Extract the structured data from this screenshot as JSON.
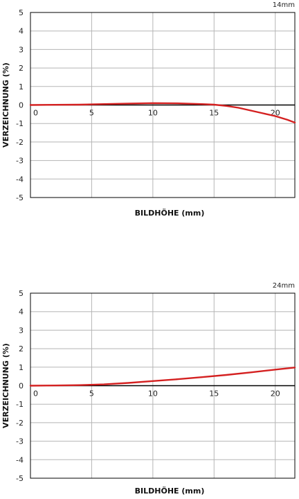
{
  "chart_data": [
    {
      "type": "line",
      "title": "14mm",
      "xlabel": "BILDHÖHE (mm)",
      "ylabel": "VERZEICHNUNG (%)",
      "xlim": [
        0,
        21.6
      ],
      "ylim": [
        -5,
        5
      ],
      "xticks": [
        0,
        5,
        10,
        15,
        20
      ],
      "yticks": [
        5,
        4,
        3,
        2,
        1,
        0,
        -1,
        -2,
        -3,
        -4,
        -5
      ],
      "grid": true,
      "series": [
        {
          "color": "#d42020",
          "x": [
            0,
            2,
            4,
            6,
            8,
            10,
            12,
            14,
            15,
            16,
            17,
            18,
            19,
            20,
            21,
            21.6
          ],
          "y": [
            0,
            0.01,
            0.02,
            0.05,
            0.08,
            0.1,
            0.09,
            0.05,
            0.02,
            -0.05,
            -0.15,
            -0.3,
            -0.45,
            -0.6,
            -0.8,
            -0.95
          ]
        }
      ]
    },
    {
      "type": "line",
      "title": "24mm",
      "xlabel": "BILDHÖHE (mm)",
      "ylabel": "VERZEICHNUNG (%)",
      "xlim": [
        0,
        21.6
      ],
      "ylim": [
        -5,
        5
      ],
      "xticks": [
        0,
        5,
        10,
        15,
        20
      ],
      "yticks": [
        5,
        4,
        3,
        2,
        1,
        0,
        -1,
        -2,
        -3,
        -4,
        -5
      ],
      "grid": true,
      "series": [
        {
          "color": "#d42020",
          "x": [
            0,
            2,
            4,
            6,
            8,
            10,
            12,
            14,
            16,
            18,
            20,
            21.6
          ],
          "y": [
            0,
            0.01,
            0.03,
            0.07,
            0.15,
            0.25,
            0.35,
            0.46,
            0.58,
            0.72,
            0.87,
            0.98
          ]
        }
      ]
    }
  ]
}
